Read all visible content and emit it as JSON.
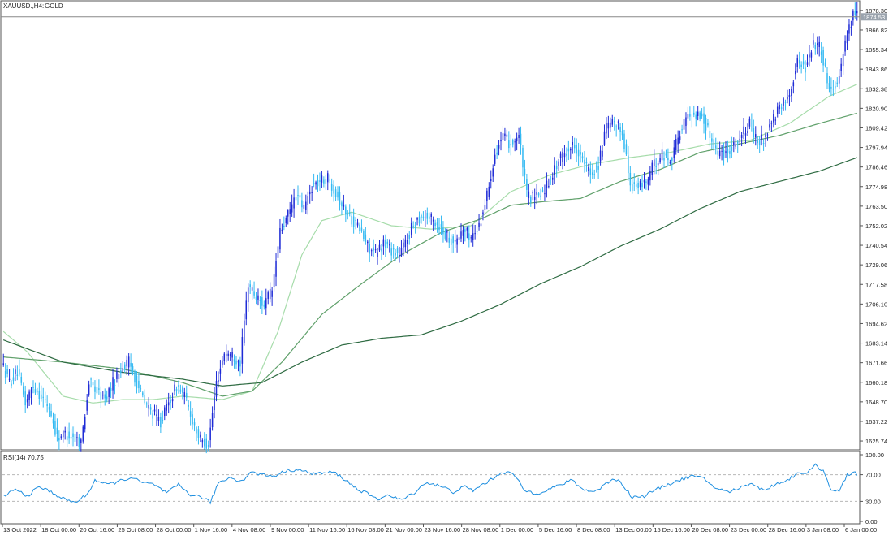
{
  "chart_data": {
    "type": "candlestick",
    "symbol_label": "XAUUSD.,H4:",
    "name_label": "GOLD",
    "current_price": "1874.53",
    "colors": {
      "bull": "#1e2bd6",
      "bear": "#33b9f2",
      "ma_fast": "#a6dcaa",
      "ma_mid": "#5fa06a",
      "ma_slow": "#2e6b42",
      "rsi_line": "#1e8fe0",
      "grid": "#d0d0d0",
      "axis": "#555555",
      "price_line": "#888888",
      "price_tag_bg": "#9aa3ad"
    },
    "price_axis": {
      "min": 1621.0,
      "max": 1883.0,
      "ticks": [
        "1878.30",
        "1866.82",
        "1855.34",
        "1843.86",
        "1832.38",
        "1820.90",
        "1809.42",
        "1797.94",
        "1786.46",
        "1774.98",
        "1763.50",
        "1752.02",
        "1740.54",
        "1729.06",
        "1717.58",
        "1706.10",
        "1694.62",
        "1683.14",
        "1671.66",
        "1660.18",
        "1648.70",
        "1637.22",
        "1625.74"
      ]
    },
    "time_axis": {
      "ticks": [
        "13 Oct 2022",
        "18 Oct 00:00",
        "20 Oct 16:00",
        "25 Oct 08:00",
        "28 Oct 00:00",
        "1 Nov 16:00",
        "4 Nov 08:00",
        "9 Nov 00:00",
        "11 Nov 16:00",
        "16 Nov 08:00",
        "21 Nov 00:00",
        "23 Nov 16:00",
        "28 Nov 08:00",
        "1 Dec 00:00",
        "5 Dec 16:00",
        "8 Dec 08:00",
        "13 Dec 00:00",
        "15 Dec 16:00",
        "20 Dec 08:00",
        "23 Dec 00:00",
        "28 Dec 16:00",
        "3 Jan 08:00",
        "6 Jan 00:00"
      ]
    },
    "anchors": [
      [
        0,
        1672
      ],
      [
        4,
        1660
      ],
      [
        8,
        1666
      ],
      [
        12,
        1648
      ],
      [
        16,
        1658
      ],
      [
        20,
        1652
      ],
      [
        24,
        1645
      ],
      [
        28,
        1628
      ],
      [
        32,
        1630
      ],
      [
        36,
        1628
      ],
      [
        40,
        1625
      ],
      [
        44,
        1660
      ],
      [
        48,
        1655
      ],
      [
        52,
        1650
      ],
      [
        56,
        1660
      ],
      [
        60,
        1668
      ],
      [
        64,
        1672
      ],
      [
        68,
        1660
      ],
      [
        72,
        1648
      ],
      [
        76,
        1642
      ],
      [
        80,
        1637
      ],
      [
        84,
        1648
      ],
      [
        88,
        1658
      ],
      [
        92,
        1652
      ],
      [
        96,
        1638
      ],
      [
        100,
        1626
      ],
      [
        104,
        1624
      ],
      [
        108,
        1660
      ],
      [
        112,
        1678
      ],
      [
        116,
        1676
      ],
      [
        120,
        1672
      ],
      [
        124,
        1718
      ],
      [
        128,
        1710
      ],
      [
        132,
        1706
      ],
      [
        136,
        1714
      ],
      [
        140,
        1748
      ],
      [
        144,
        1758
      ],
      [
        148,
        1770
      ],
      [
        152,
        1762
      ],
      [
        156,
        1775
      ],
      [
        160,
        1778
      ],
      [
        164,
        1780
      ],
      [
        168,
        1772
      ],
      [
        172,
        1762
      ],
      [
        176,
        1756
      ],
      [
        180,
        1750
      ],
      [
        184,
        1740
      ],
      [
        188,
        1735
      ],
      [
        192,
        1742
      ],
      [
        196,
        1738
      ],
      [
        200,
        1735
      ],
      [
        204,
        1745
      ],
      [
        208,
        1755
      ],
      [
        212,
        1758
      ],
      [
        216,
        1756
      ],
      [
        220,
        1752
      ],
      [
        224,
        1746
      ],
      [
        228,
        1742
      ],
      [
        232,
        1750
      ],
      [
        236,
        1745
      ],
      [
        240,
        1752
      ],
      [
        244,
        1770
      ],
      [
        248,
        1795
      ],
      [
        252,
        1804
      ],
      [
        256,
        1800
      ],
      [
        260,
        1805
      ],
      [
        264,
        1770
      ],
      [
        268,
        1768
      ],
      [
        272,
        1772
      ],
      [
        276,
        1780
      ],
      [
        280,
        1790
      ],
      [
        284,
        1796
      ],
      [
        288,
        1800
      ],
      [
        292,
        1790
      ],
      [
        296,
        1782
      ],
      [
        300,
        1788
      ],
      [
        304,
        1810
      ],
      [
        308,
        1812
      ],
      [
        312,
        1808
      ],
      [
        316,
        1776
      ],
      [
        320,
        1775
      ],
      [
        324,
        1778
      ],
      [
        328,
        1788
      ],
      [
        332,
        1794
      ],
      [
        336,
        1790
      ],
      [
        340,
        1804
      ],
      [
        344,
        1815
      ],
      [
        348,
        1818
      ],
      [
        352,
        1816
      ],
      [
        356,
        1805
      ],
      [
        360,
        1795
      ],
      [
        364,
        1795
      ],
      [
        368,
        1800
      ],
      [
        372,
        1805
      ],
      [
        376,
        1812
      ],
      [
        380,
        1800
      ],
      [
        384,
        1805
      ],
      [
        388,
        1815
      ],
      [
        392,
        1822
      ],
      [
        396,
        1830
      ],
      [
        400,
        1848
      ],
      [
        404,
        1845
      ],
      [
        408,
        1860
      ],
      [
        412,
        1855
      ],
      [
        416,
        1832
      ],
      [
        420,
        1836
      ],
      [
        424,
        1860
      ],
      [
        428,
        1876
      ],
      [
        429,
        1876
      ]
    ],
    "ma_fast": [
      [
        0,
        1690
      ],
      [
        12,
        1678
      ],
      [
        30,
        1652
      ],
      [
        45,
        1648
      ],
      [
        60,
        1650
      ],
      [
        75,
        1650
      ],
      [
        90,
        1652
      ],
      [
        110,
        1650
      ],
      [
        125,
        1655
      ],
      [
        138,
        1690
      ],
      [
        150,
        1735
      ],
      [
        160,
        1755
      ],
      [
        175,
        1760
      ],
      [
        195,
        1752
      ],
      [
        215,
        1750
      ],
      [
        235,
        1752
      ],
      [
        255,
        1772
      ],
      [
        275,
        1782
      ],
      [
        295,
        1788
      ],
      [
        315,
        1792
      ],
      [
        335,
        1795
      ],
      [
        355,
        1800
      ],
      [
        375,
        1802
      ],
      [
        395,
        1812
      ],
      [
        415,
        1828
      ],
      [
        429,
        1835
      ]
    ],
    "ma_mid": [
      [
        0,
        1675
      ],
      [
        30,
        1672
      ],
      [
        60,
        1668
      ],
      [
        90,
        1660
      ],
      [
        110,
        1652
      ],
      [
        125,
        1655
      ],
      [
        140,
        1672
      ],
      [
        160,
        1700
      ],
      [
        180,
        1718
      ],
      [
        200,
        1735
      ],
      [
        220,
        1748
      ],
      [
        240,
        1756
      ],
      [
        255,
        1764
      ],
      [
        270,
        1766
      ],
      [
        290,
        1768
      ],
      [
        310,
        1778
      ],
      [
        330,
        1785
      ],
      [
        350,
        1795
      ],
      [
        370,
        1800
      ],
      [
        390,
        1805
      ],
      [
        410,
        1812
      ],
      [
        429,
        1818
      ]
    ],
    "ma_slow": [
      [
        0,
        1685
      ],
      [
        30,
        1672
      ],
      [
        60,
        1666
      ],
      [
        90,
        1662
      ],
      [
        110,
        1658
      ],
      [
        130,
        1660
      ],
      [
        150,
        1672
      ],
      [
        170,
        1682
      ],
      [
        190,
        1686
      ],
      [
        210,
        1688
      ],
      [
        230,
        1696
      ],
      [
        250,
        1706
      ],
      [
        270,
        1718
      ],
      [
        290,
        1728
      ],
      [
        310,
        1740
      ],
      [
        330,
        1750
      ],
      [
        350,
        1762
      ],
      [
        370,
        1772
      ],
      [
        390,
        1778
      ],
      [
        410,
        1784
      ],
      [
        429,
        1792
      ]
    ],
    "rsi": {
      "label": "RSI(14) 70.75",
      "ticks": [
        "100.00",
        "70.00",
        "30.00",
        "0.00"
      ],
      "levels": [
        70,
        30
      ],
      "min": 0,
      "max": 100,
      "anchors": [
        [
          0,
          38
        ],
        [
          6,
          48
        ],
        [
          12,
          38
        ],
        [
          18,
          52
        ],
        [
          24,
          44
        ],
        [
          30,
          34
        ],
        [
          36,
          28
        ],
        [
          42,
          40
        ],
        [
          46,
          62
        ],
        [
          52,
          55
        ],
        [
          58,
          60
        ],
        [
          64,
          66
        ],
        [
          70,
          58
        ],
        [
          76,
          55
        ],
        [
          82,
          42
        ],
        [
          88,
          55
        ],
        [
          94,
          40
        ],
        [
          100,
          36
        ],
        [
          104,
          28
        ],
        [
          108,
          58
        ],
        [
          114,
          66
        ],
        [
          120,
          60
        ],
        [
          124,
          74
        ],
        [
          130,
          70
        ],
        [
          136,
          68
        ],
        [
          142,
          76
        ],
        [
          148,
          78
        ],
        [
          154,
          72
        ],
        [
          160,
          72
        ],
        [
          166,
          74
        ],
        [
          172,
          62
        ],
        [
          178,
          48
        ],
        [
          184,
          40
        ],
        [
          188,
          32
        ],
        [
          192,
          40
        ],
        [
          196,
          36
        ],
        [
          200,
          32
        ],
        [
          206,
          42
        ],
        [
          212,
          58
        ],
        [
          216,
          56
        ],
        [
          222,
          50
        ],
        [
          226,
          44
        ],
        [
          232,
          52
        ],
        [
          236,
          46
        ],
        [
          240,
          54
        ],
        [
          246,
          64
        ],
        [
          250,
          74
        ],
        [
          256,
          72
        ],
        [
          262,
          46
        ],
        [
          268,
          42
        ],
        [
          274,
          48
        ],
        [
          280,
          55
        ],
        [
          286,
          62
        ],
        [
          290,
          50
        ],
        [
          296,
          44
        ],
        [
          300,
          50
        ],
        [
          306,
          64
        ],
        [
          310,
          60
        ],
        [
          316,
          36
        ],
        [
          322,
          38
        ],
        [
          328,
          48
        ],
        [
          334,
          56
        ],
        [
          340,
          62
        ],
        [
          346,
          68
        ],
        [
          352,
          64
        ],
        [
          358,
          50
        ],
        [
          364,
          44
        ],
        [
          370,
          50
        ],
        [
          376,
          58
        ],
        [
          382,
          46
        ],
        [
          388,
          56
        ],
        [
          394,
          62
        ],
        [
          400,
          74
        ],
        [
          404,
          72
        ],
        [
          408,
          84
        ],
        [
          412,
          76
        ],
        [
          416,
          48
        ],
        [
          420,
          44
        ],
        [
          424,
          70
        ],
        [
          428,
          74
        ],
        [
          429,
          71
        ]
      ]
    }
  }
}
